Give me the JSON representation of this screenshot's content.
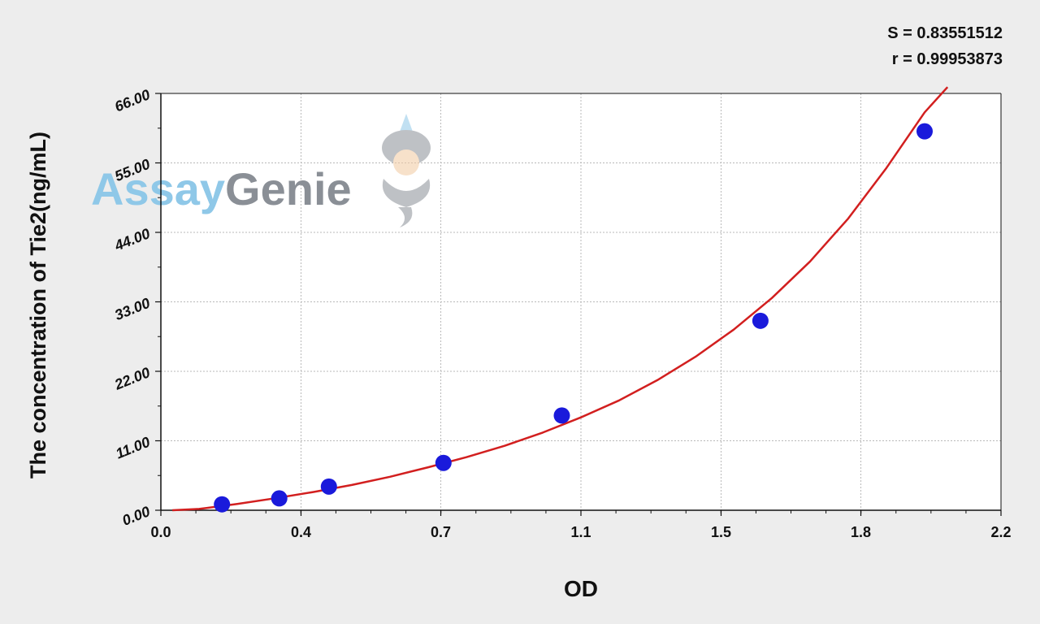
{
  "stats": {
    "s_text": "S = 0.83551512",
    "r_text": "r = 0.99953873"
  },
  "watermark": {
    "part1": "Assay",
    "part2": "Genie",
    "color1": "#8fc8e8",
    "color2": "#8a8f96",
    "icon": "genie-mascot-icon"
  },
  "colors": {
    "background": "#ededed",
    "plot_bg": "#ffffff",
    "points": "#1a1adb",
    "curve": "#d21f1f",
    "grid": "#b9b9b9"
  },
  "chart_data": {
    "type": "scatter",
    "title": "",
    "xlabel": "OD",
    "ylabel": "The concentration of Tie2(ng/mL)",
    "xlim": [
      0.0,
      2.2
    ],
    "ylim": [
      0.0,
      66.0
    ],
    "x_ticks": [
      "0.0",
      "0.4",
      "0.7",
      "1.1",
      "1.5",
      "1.8",
      "2.2"
    ],
    "x_tick_values": [
      0.0,
      0.367,
      0.733,
      1.1,
      1.467,
      1.833,
      2.2
    ],
    "y_ticks": [
      "0.00",
      "11.00",
      "22.00",
      "33.00",
      "44.00",
      "55.00",
      "66.00"
    ],
    "y_tick_values": [
      0,
      11,
      22,
      33,
      44,
      55,
      66
    ],
    "grid": true,
    "series": [
      {
        "kind": "points",
        "x": [
          0.16,
          0.31,
          0.44,
          0.74,
          1.05,
          1.57,
          2.0
        ],
        "y": [
          0.94,
          1.88,
          3.75,
          7.5,
          15.0,
          30.0,
          60.0
        ]
      },
      {
        "kind": "fit-curve",
        "x": [
          0.03,
          0.1,
          0.2,
          0.3,
          0.4,
          0.5,
          0.6,
          0.7,
          0.8,
          0.9,
          1.0,
          1.1,
          1.2,
          1.3,
          1.4,
          1.5,
          1.6,
          1.7,
          1.8,
          1.9,
          2.0,
          2.06
        ],
        "y": [
          0.0,
          0.2,
          1.0,
          1.9,
          2.9,
          4.0,
          5.3,
          6.8,
          8.4,
          10.2,
          12.3,
          14.7,
          17.4,
          20.6,
          24.3,
          28.6,
          33.6,
          39.4,
          46.2,
          54.2,
          63.0,
          67.0
        ]
      }
    ]
  }
}
